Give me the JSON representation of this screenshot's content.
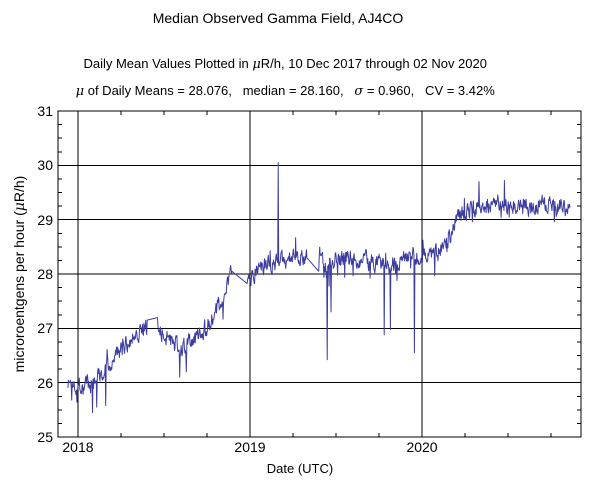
{
  "header": {
    "title": "Median Observed Gamma Field, AJ4CO",
    "subtitle_part1": "Daily Mean Values Plotted in ",
    "subtitle_mu": "μ",
    "subtitle_part2": "R/h, 10 Dec 2017 through 02 Nov 2020",
    "stats_mu": "μ",
    "stats_part1": " of Daily Means = 28.076,   median = 28.160,   ",
    "stats_sigma": "σ",
    "stats_part2": " = 0.960,   CV = 3.42%"
  },
  "axes": {
    "y_label_part1": "microroentgens per hour (",
    "y_label_mu": "μ",
    "y_label_part2": "R/h)",
    "x_label": "Date (UTC)"
  },
  "chart_data": {
    "type": "line",
    "title": "Median Observed Gamma Field, AJ4CO",
    "subtitle": "Daily Mean Values Plotted in μR/h, 10 Dec 2017 through 02 Nov 2020",
    "annotation": "μ of Daily Means = 28.076,   median = 28.160,   σ = 0.960,   CV = 3.42%",
    "xlabel": "Date (UTC)",
    "ylabel": "microroentgens per hour (μR/h)",
    "stats": {
      "mean_of_daily_means": 28.076,
      "median": 28.16,
      "sigma": 0.96,
      "cv_percent": 3.42
    },
    "grid": true,
    "line_color": "#3d3da0",
    "xlim": [
      2017.884,
      2020.924
    ],
    "ylim": [
      25,
      31
    ],
    "x_major_ticks": [
      2018,
      2019,
      2020
    ],
    "x_minor_step": 0.25,
    "y_major_ticks": [
      25,
      26,
      27,
      28,
      29,
      30,
      31
    ],
    "y_minor_step": 0.25,
    "series_start": 2017.942,
    "series_end": 2020.86,
    "points_per_year": 365,
    "seed": 1337,
    "noise": {
      "persistence": 0.45,
      "base": 0.14,
      "excursion_prob": 0.08,
      "excursion_amp": 0.3
    },
    "trend": [
      [
        2017.942,
        26.0
      ],
      [
        2018.02,
        25.95
      ],
      [
        2018.08,
        26.0
      ],
      [
        2018.15,
        26.25
      ],
      [
        2018.22,
        26.5
      ],
      [
        2018.3,
        26.8
      ],
      [
        2018.37,
        27.0
      ],
      [
        2018.44,
        27.1
      ],
      [
        2018.5,
        26.9
      ],
      [
        2018.56,
        26.7
      ],
      [
        2018.62,
        26.65
      ],
      [
        2018.68,
        26.85
      ],
      [
        2018.74,
        27.0
      ],
      [
        2018.8,
        27.3
      ],
      [
        2018.85,
        27.6
      ],
      [
        2018.895,
        28.05
      ],
      [
        2018.99,
        27.85
      ],
      [
        2019.05,
        28.1
      ],
      [
        2019.15,
        28.2
      ],
      [
        2019.3,
        28.35
      ],
      [
        2019.42,
        28.2
      ],
      [
        2019.5,
        28.25
      ],
      [
        2019.6,
        28.3
      ],
      [
        2019.72,
        28.2
      ],
      [
        2019.8,
        28.15
      ],
      [
        2019.9,
        28.3
      ],
      [
        2020.0,
        28.35
      ],
      [
        2020.1,
        28.45
      ],
      [
        2020.15,
        28.6
      ],
      [
        2020.2,
        29.1
      ],
      [
        2020.3,
        29.2
      ],
      [
        2020.45,
        29.3
      ],
      [
        2020.6,
        29.25
      ],
      [
        2020.75,
        29.3
      ],
      [
        2020.86,
        29.2
      ]
    ],
    "gaps": [
      [
        2018.4,
        2018.465,
        27.15,
        27.2
      ],
      [
        2018.895,
        2018.985,
        28.05,
        27.82
      ],
      [
        2019.33,
        2019.4,
        28.3,
        28.05
      ]
    ],
    "spikes": [
      [
        2017.965,
        25.68
      ],
      [
        2018.085,
        25.45
      ],
      [
        2018.11,
        25.55
      ],
      [
        2018.16,
        25.58
      ],
      [
        2018.59,
        26.1
      ],
      [
        2018.63,
        26.2
      ],
      [
        2019.163,
        30.05
      ],
      [
        2019.45,
        26.42
      ],
      [
        2019.47,
        27.3
      ],
      [
        2019.78,
        26.88
      ],
      [
        2019.815,
        26.98
      ],
      [
        2019.955,
        26.55
      ],
      [
        2020.33,
        29.7
      ],
      [
        2020.48,
        29.72
      ]
    ]
  }
}
